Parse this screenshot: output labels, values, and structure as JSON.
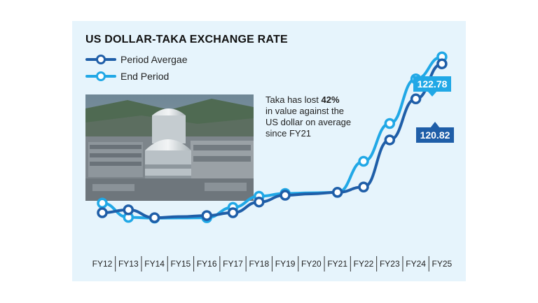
{
  "title": "US DOLLAR-TAKA EXCHANGE RATE",
  "legend": {
    "average": "Period Avergae",
    "end": "End Period"
  },
  "annotation": {
    "line1": "Taka has lost ",
    "highlight": "42%",
    "line2": "in value against the",
    "line3": "US dollar on average",
    "line4": "since FY21"
  },
  "photo_caption": "nuclear-power-plant-photo",
  "colors": {
    "average": "#1f5ea8",
    "end": "#21a8e6",
    "panel": "#e6f4fc"
  },
  "chart_data": {
    "type": "line",
    "title": "US DOLLAR-TAKA EXCHANGE RATE",
    "categories": [
      "FY12",
      "FY13",
      "FY14",
      "FY15",
      "FY16",
      "FY17",
      "FY18",
      "FY19",
      "FY20",
      "FY21",
      "FY22",
      "FY23",
      "FY24",
      "FY25"
    ],
    "ylim": [
      74,
      124
    ],
    "series": [
      {
        "name": "Period Avergae",
        "values": [
          79.1,
          79.9,
          77.7,
          null,
          78.3,
          79.1,
          82.1,
          84.0,
          null,
          84.8,
          86.3,
          99.5,
          111.0,
          120.82
        ]
      },
      {
        "name": "End Period",
        "values": [
          81.8,
          77.8,
          77.6,
          null,
          77.7,
          80.6,
          83.7,
          84.5,
          null,
          84.8,
          93.5,
          104.1,
          116.6,
          122.78
        ]
      }
    ],
    "labels": {
      "end_last": "122.78",
      "average_last": "120.82"
    }
  }
}
